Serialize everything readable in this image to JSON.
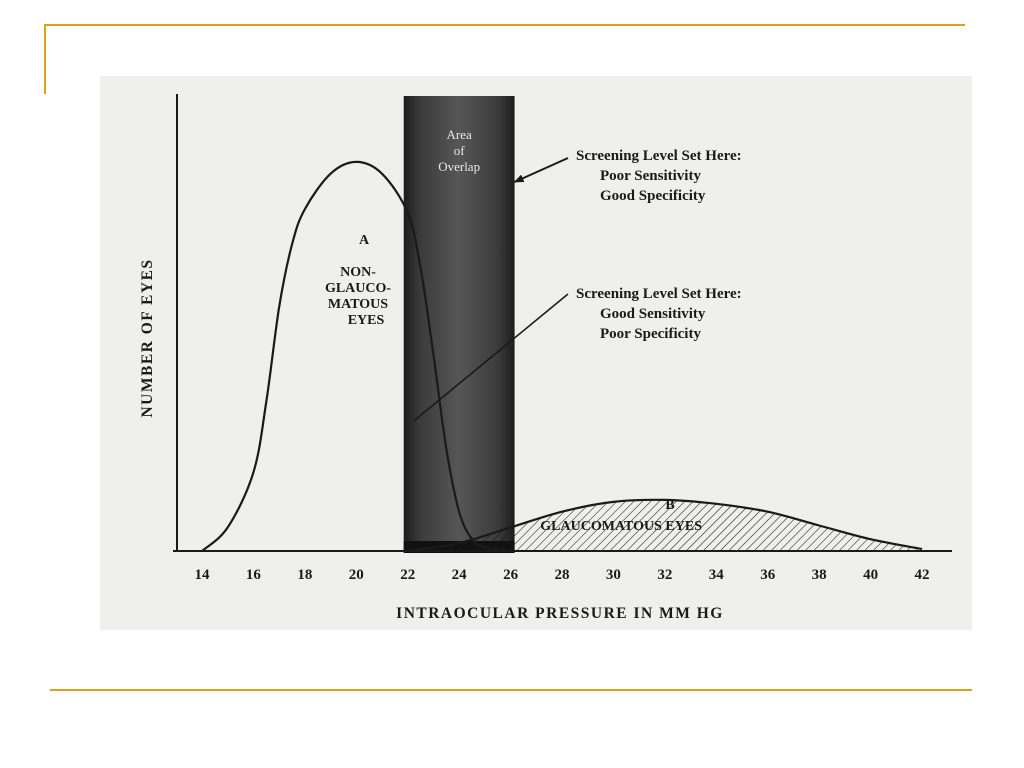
{
  "colors": {
    "accent_rule": "#d9a21b",
    "figure_background": "#efefed",
    "ink": "#1a1a1a",
    "overlap_band": "#3a3a3a"
  },
  "chart_data": {
    "type": "area",
    "xlabel": "INTRAOCULAR PRESSURE IN MM HG",
    "ylabel": "NUMBER OF EYES",
    "xlim": [
      14,
      42
    ],
    "x_ticks": [
      14,
      16,
      18,
      20,
      22,
      24,
      26,
      28,
      30,
      32,
      34,
      36,
      38,
      40,
      42
    ],
    "ylim": [
      0,
      100
    ],
    "y_tick_labels": "none",
    "grid": false,
    "legend": "none",
    "series": [
      {
        "name": "NON-GLAUCOMATOUS EYES",
        "label_letter": "A",
        "label_lines": [
          "NON-",
          "GLAUCO-",
          "MATOUS",
          "EYES"
        ],
        "x": [
          14,
          15,
          16,
          16.5,
          17,
          17.5,
          18,
          19,
          20,
          21,
          22,
          22.5,
          23,
          23.5,
          24,
          24.5,
          25,
          26
        ],
        "values": [
          0,
          6,
          20,
          38,
          62,
          78,
          87,
          96,
          99,
          96,
          86,
          72,
          50,
          26,
          10,
          3,
          1,
          0
        ]
      },
      {
        "name": "GLAUCOMATOUS EYES",
        "label_letter": "B",
        "label_lines": [
          "GLAUCOMATOUS EYES"
        ],
        "fill": "hatched",
        "x": [
          22,
          24,
          26,
          28,
          30,
          32,
          34,
          36,
          38,
          40,
          42
        ],
        "values": [
          0,
          2,
          6,
          10,
          12.5,
          13,
          12,
          10,
          6.5,
          3,
          0.5
        ]
      }
    ],
    "overlap_region": {
      "x_range": [
        22,
        26
      ],
      "label_lines": [
        "Area",
        "of",
        "Overlap"
      ]
    },
    "annotations": [
      {
        "lines": [
          "Screening Level Set Here:",
          "Poor Sensitivity",
          "Good Specificity"
        ],
        "points_to_x": 26
      },
      {
        "lines": [
          "Screening Level Set Here:",
          "Good Sensitivity",
          "Poor Specificity"
        ],
        "points_to_x": 22
      }
    ]
  }
}
